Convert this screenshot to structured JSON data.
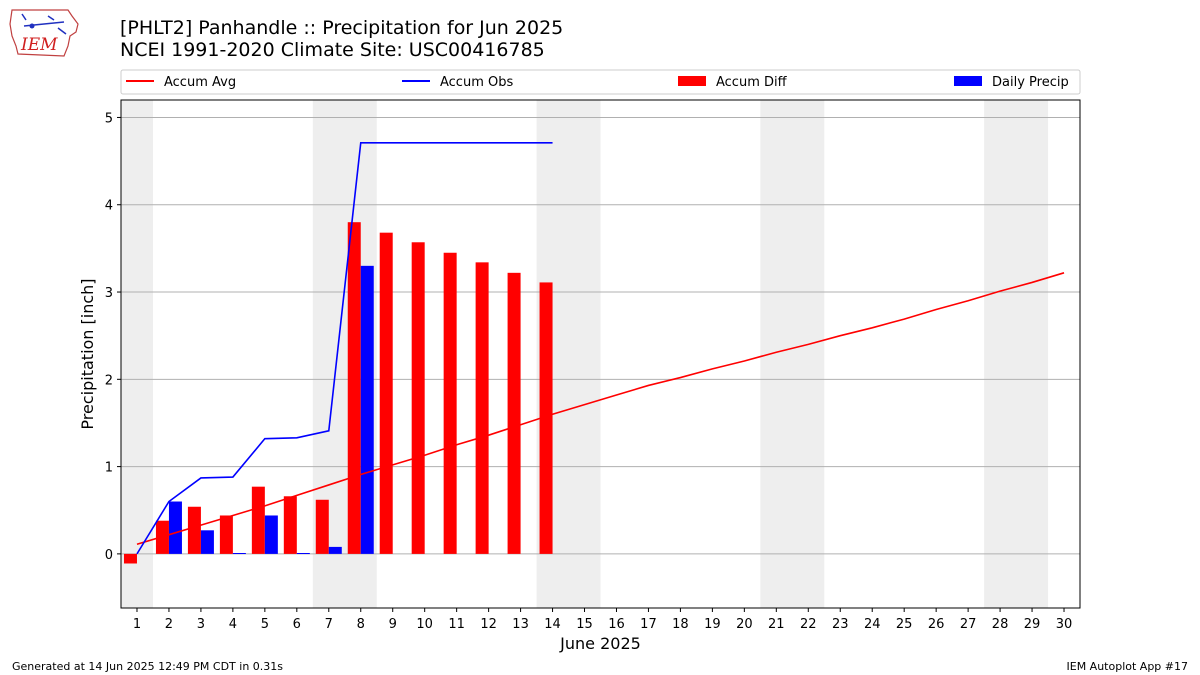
{
  "header": {
    "title_line1": "[PHLT2] Panhandle :: Precipitation for Jun 2025",
    "title_line2": "NCEI 1991-2020 Climate Site: USC00416785",
    "logo_text": "IEM"
  },
  "footer": {
    "generated": "Generated at 14 Jun 2025 12:49 PM CDT in 0.31s",
    "app": "IEM Autoplot App #17"
  },
  "chart_data": {
    "type": "bar",
    "title": "[PHLT2] Panhandle :: Precipitation for Jun 2025",
    "subtitle": "NCEI 1991-2020 Climate Site: USC00416785",
    "xlabel": "June 2025",
    "ylabel": "Precipitation [inch]",
    "xlim": [
      0.5,
      30.5
    ],
    "ylim": [
      -0.62,
      5.2
    ],
    "x_ticks": [
      1,
      2,
      3,
      4,
      5,
      6,
      7,
      8,
      9,
      10,
      11,
      12,
      13,
      14,
      15,
      16,
      17,
      18,
      19,
      20,
      21,
      22,
      23,
      24,
      25,
      26,
      27,
      28,
      29,
      30
    ],
    "y_ticks": [
      0,
      1,
      2,
      3,
      4,
      5
    ],
    "grid": "horizontal",
    "legend_position": "top (above plot)",
    "weekend_shading": [
      [
        0.5,
        1.5
      ],
      [
        6.5,
        8.5
      ],
      [
        13.5,
        15.5
      ],
      [
        20.5,
        22.5
      ],
      [
        27.5,
        29.5
      ]
    ],
    "colors": {
      "accum_avg": "#ff0000",
      "accum_obs": "#0000ff",
      "accum_diff": "#ff0000",
      "daily_precip": "#0000ff",
      "weekend": "#eeeeee"
    },
    "series": [
      {
        "name": "Accum Avg",
        "kind": "line",
        "x": [
          1,
          2,
          3,
          4,
          5,
          6,
          7,
          8,
          9,
          10,
          11,
          12,
          13,
          14,
          15,
          16,
          17,
          18,
          19,
          20,
          21,
          22,
          23,
          24,
          25,
          26,
          27,
          28,
          29,
          30
        ],
        "values": [
          0.11,
          0.22,
          0.33,
          0.44,
          0.55,
          0.67,
          0.79,
          0.91,
          1.02,
          1.13,
          1.25,
          1.36,
          1.48,
          1.6,
          1.71,
          1.82,
          1.93,
          2.02,
          2.12,
          2.21,
          2.31,
          2.4,
          2.5,
          2.59,
          2.69,
          2.8,
          2.9,
          3.01,
          3.11,
          3.22
        ]
      },
      {
        "name": "Accum Obs",
        "kind": "line",
        "x": [
          1,
          2,
          3,
          4,
          5,
          6,
          7,
          8,
          9,
          10,
          11,
          12,
          13,
          14
        ],
        "values": [
          0.0,
          0.6,
          0.87,
          0.88,
          1.32,
          1.33,
          1.41,
          4.71,
          4.71,
          4.71,
          4.71,
          4.71,
          4.71,
          4.71
        ]
      },
      {
        "name": "Accum Diff",
        "kind": "bar",
        "x": [
          1,
          2,
          3,
          4,
          5,
          6,
          7,
          8,
          9,
          10,
          11,
          12,
          13,
          14
        ],
        "values": [
          -0.11,
          0.38,
          0.54,
          0.44,
          0.77,
          0.66,
          0.62,
          3.8,
          3.68,
          3.57,
          3.45,
          3.34,
          3.22,
          3.11
        ]
      },
      {
        "name": "Daily Precip",
        "kind": "bar",
        "x": [
          1,
          2,
          3,
          4,
          5,
          6,
          7,
          8,
          9,
          10,
          11,
          12,
          13,
          14
        ],
        "values": [
          0.0,
          0.6,
          0.27,
          0.01,
          0.44,
          0.01,
          0.08,
          3.3,
          0,
          0,
          0,
          0,
          0,
          0
        ]
      }
    ]
  }
}
